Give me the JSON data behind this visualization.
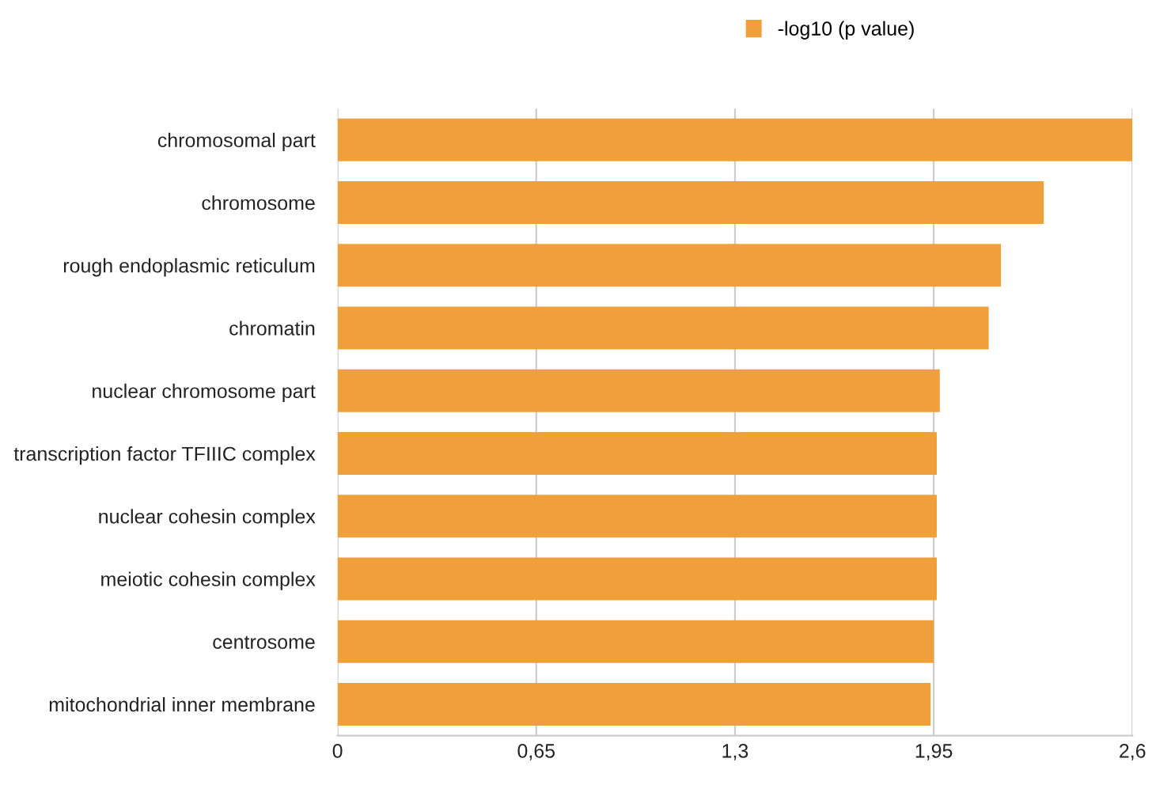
{
  "chart_data": {
    "type": "bar",
    "orientation": "horizontal",
    "categories": [
      "chromosomal part",
      "chromosome",
      "rough endoplasmic reticulum",
      "chromatin",
      "nuclear chromosome part",
      "transcription factor TFIIIC complex",
      "nuclear cohesin complex",
      "meiotic cohesin complex",
      "centrosome",
      "mitochondrial inner membrane"
    ],
    "series": [
      {
        "name": "-log10 (p value)",
        "color": "#f0a03a",
        "values": [
          2.6,
          2.31,
          2.17,
          2.13,
          1.97,
          1.96,
          1.96,
          1.96,
          1.95,
          1.94
        ]
      }
    ],
    "xlim": [
      0,
      2.6
    ],
    "xticks": [
      0,
      {
        "value": 0.65,
        "label": "0,65"
      },
      {
        "value": 1.3,
        "label": "1,3"
      },
      {
        "value": 1.95,
        "label": "1,95"
      },
      {
        "value": 2.6,
        "label": "2,6"
      }
    ],
    "grid": "x",
    "legend": "top right"
  }
}
